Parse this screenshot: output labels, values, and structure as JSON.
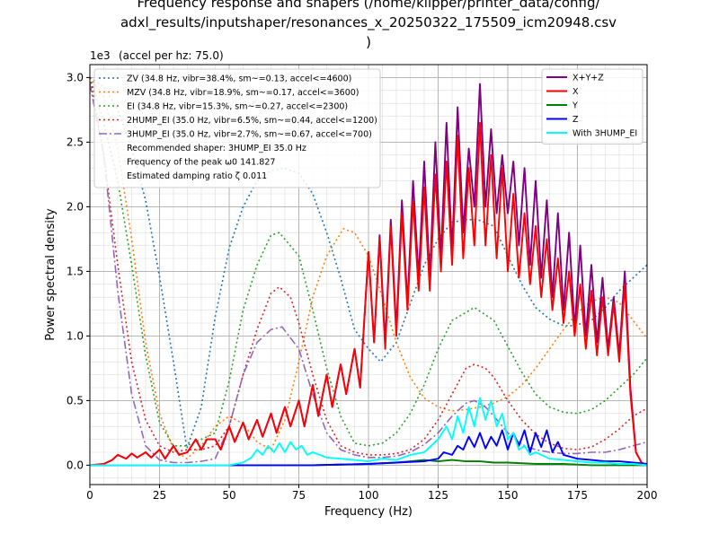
{
  "chart_data": {
    "type": "line",
    "title_lines": [
      "Frequency response and shapers (/home/klipper/printer_data/config/",
      "adxl_results/inputshaper/resonances_x_20250322_175509_icm20948.csv",
      ")"
    ],
    "xlabel": "Frequency (Hz)",
    "ylabel": "Power spectral density",
    "y_multiplier_label": "1e3",
    "top_annotation": "(accel per hz: 75.0)",
    "xlim": [
      0,
      200
    ],
    "ylim": [
      -0.15,
      3.1
    ],
    "x_ticks": [
      0,
      25,
      50,
      75,
      100,
      125,
      150,
      175,
      200
    ],
    "x_tick_labels": [
      "0",
      "25",
      "50",
      "75",
      "100",
      "125",
      "150",
      "175",
      "200"
    ],
    "y_ticks": [
      0,
      0.5,
      1.0,
      1.5,
      2.0,
      2.5,
      3.0
    ],
    "y_tick_labels": [
      "0.0",
      "0.5",
      "1.0",
      "1.5",
      "2.0",
      "2.5",
      "3.0"
    ],
    "grid": true,
    "minor_grid": true,
    "legend_left_position": "upper-left",
    "legend_right_position": "upper-right",
    "shaper_series": [
      {
        "name": "ZV (34.8 Hz, vibr=38.4%, sm~=0.13, accel<=4600)",
        "color": "#1f77b4",
        "style": "dotted",
        "x": [
          0,
          5,
          10,
          15,
          20,
          25,
          30,
          34.8,
          40,
          45,
          50,
          55,
          60,
          65,
          69.6,
          75,
          80,
          85,
          90,
          95,
          100,
          104.4,
          110,
          115,
          120,
          125,
          130,
          135,
          139.2,
          145,
          150,
          155,
          160,
          165,
          170,
          174,
          180,
          185,
          190,
          195,
          200
        ],
        "y": [
          3.0,
          2.93,
          2.75,
          2.45,
          2.05,
          1.46,
          0.8,
          0.13,
          0.45,
          1.15,
          1.68,
          2.0,
          2.2,
          2.28,
          2.3,
          2.26,
          2.1,
          1.8,
          1.45,
          1.05,
          0.9,
          0.8,
          0.95,
          1.25,
          1.55,
          1.75,
          1.88,
          1.9,
          1.9,
          1.85,
          1.62,
          1.4,
          1.22,
          1.13,
          1.08,
          1.08,
          1.12,
          1.22,
          1.35,
          1.45,
          1.55
        ]
      },
      {
        "name": "MZV (34.8 Hz, vibr=18.9%, sm~=0.17, accel<=3600)",
        "color": "#ff7f0e",
        "style": "dotted",
        "x": [
          0,
          5,
          10,
          15,
          20,
          25,
          30,
          34.8,
          40,
          45,
          50,
          55,
          60,
          65,
          70,
          75,
          80,
          85,
          91,
          95,
          100,
          105,
          110,
          115,
          120,
          125,
          130,
          135,
          140,
          145,
          150,
          155,
          160,
          165,
          170,
          175,
          180,
          185,
          190,
          195,
          200
        ],
        "y": [
          3.0,
          2.85,
          2.45,
          1.75,
          0.95,
          0.4,
          0.12,
          0.05,
          0.15,
          0.3,
          0.38,
          0.32,
          0.18,
          0.12,
          0.35,
          0.8,
          1.3,
          1.62,
          1.83,
          1.8,
          1.62,
          1.3,
          0.95,
          0.68,
          0.52,
          0.45,
          0.42,
          0.43,
          0.45,
          0.48,
          0.53,
          0.62,
          0.75,
          0.9,
          1.05,
          1.18,
          1.27,
          1.3,
          1.26,
          1.12,
          0.98
        ]
      },
      {
        "name": "EI (34.8 Hz, vibr=15.3%, sm~=0.27, accel<=2300)",
        "color": "#2ca02c",
        "style": "dotted",
        "x": [
          0,
          5,
          10,
          15,
          20,
          25,
          30,
          34.8,
          40,
          45,
          50,
          55,
          60,
          65,
          68,
          75,
          80,
          85,
          90,
          95,
          100,
          105,
          110,
          115,
          120,
          125,
          130,
          138,
          145,
          150,
          155,
          160,
          165,
          170,
          175,
          180,
          185,
          190,
          195,
          200
        ],
        "y": [
          3.0,
          2.65,
          2.2,
          1.55,
          0.85,
          0.33,
          0.15,
          0.15,
          0.2,
          0.25,
          0.65,
          1.2,
          1.55,
          1.78,
          1.8,
          1.62,
          1.2,
          0.75,
          0.38,
          0.17,
          0.15,
          0.17,
          0.25,
          0.4,
          0.62,
          0.9,
          1.12,
          1.22,
          1.12,
          0.92,
          0.72,
          0.55,
          0.45,
          0.41,
          0.4,
          0.43,
          0.5,
          0.6,
          0.7,
          0.83
        ]
      },
      {
        "name": "2HUMP_EI (35.0 Hz, vibr=6.5%, sm~=0.44, accel<=1200)",
        "color": "#d62728",
        "style": "dotted",
        "x": [
          0,
          5,
          10,
          15,
          20,
          25,
          30,
          35,
          40,
          45,
          50,
          55,
          60,
          65,
          68,
          72,
          75,
          80,
          85,
          90,
          95,
          100,
          105,
          110,
          115,
          120,
          125,
          130,
          135,
          138,
          142,
          145,
          150,
          155,
          160,
          165,
          170,
          175,
          180,
          185,
          190,
          195,
          200
        ],
        "y": [
          3.0,
          2.4,
          1.55,
          0.8,
          0.35,
          0.15,
          0.1,
          0.12,
          0.12,
          0.15,
          0.3,
          0.7,
          1.05,
          1.33,
          1.38,
          1.3,
          1.1,
          0.7,
          0.35,
          0.15,
          0.1,
          0.08,
          0.08,
          0.09,
          0.12,
          0.2,
          0.35,
          0.55,
          0.75,
          0.78,
          0.75,
          0.68,
          0.5,
          0.35,
          0.24,
          0.17,
          0.13,
          0.12,
          0.14,
          0.2,
          0.28,
          0.38,
          0.44
        ]
      },
      {
        "name": "3HUMP_EI (35.0 Hz, vibr=2.7%, sm~=0.67, accel<=700)",
        "color": "#9467bd",
        "style": "dashdot",
        "x": [
          0,
          5,
          10,
          15,
          20,
          25,
          30,
          35,
          40,
          45,
          50,
          55,
          60,
          65,
          69,
          75,
          80,
          85,
          90,
          95,
          100,
          105,
          110,
          115,
          120,
          125,
          130,
          135,
          138,
          142,
          145,
          150,
          155,
          160,
          165,
          170,
          175,
          180,
          185,
          190,
          195,
          200
        ],
        "y": [
          2.95,
          2.4,
          1.35,
          0.55,
          0.15,
          0.04,
          0.02,
          0.02,
          0.03,
          0.05,
          0.3,
          0.7,
          0.95,
          1.05,
          1.07,
          0.9,
          0.55,
          0.25,
          0.12,
          0.08,
          0.06,
          0.06,
          0.07,
          0.1,
          0.16,
          0.25,
          0.38,
          0.48,
          0.5,
          0.45,
          0.38,
          0.25,
          0.16,
          0.12,
          0.1,
          0.09,
          0.09,
          0.1,
          0.1,
          0.12,
          0.15,
          0.18
        ]
      }
    ],
    "shaper_info_lines": [
      "Recommended shaper: 3HUMP_EI 35.0 Hz",
      "Frequency of the peak ω0 141.827",
      "Estimated damping ratio ζ 0.011"
    ],
    "psd_series": [
      {
        "name": "X+Y+Z",
        "color": "#800080",
        "style": "solid",
        "x": [
          0,
          5,
          8,
          10,
          13,
          15,
          17,
          20,
          22,
          25,
          27,
          30,
          32,
          35,
          38,
          40,
          42,
          45,
          47,
          50,
          52,
          55,
          57,
          60,
          62,
          65,
          67,
          70,
          72,
          75,
          77,
          80,
          82,
          85,
          87,
          90,
          92,
          95,
          97,
          100,
          102,
          104,
          106,
          108,
          110,
          112,
          114,
          116,
          118,
          120,
          122,
          124,
          126,
          128,
          130,
          132,
          134,
          136,
          138,
          140,
          142,
          144,
          146,
          148,
          150,
          152,
          154,
          156,
          158,
          160,
          162,
          164,
          166,
          168,
          170,
          172,
          174,
          176,
          178,
          180,
          182,
          184,
          186,
          188,
          190,
          192,
          194,
          196,
          198,
          200
        ],
        "y": [
          0.0,
          0.01,
          0.04,
          0.08,
          0.05,
          0.09,
          0.06,
          0.1,
          0.06,
          0.12,
          0.05,
          0.15,
          0.08,
          0.1,
          0.2,
          0.12,
          0.2,
          0.2,
          0.12,
          0.3,
          0.18,
          0.33,
          0.2,
          0.35,
          0.22,
          0.4,
          0.25,
          0.45,
          0.3,
          0.5,
          0.3,
          0.62,
          0.38,
          0.7,
          0.45,
          0.78,
          0.55,
          0.9,
          0.6,
          1.65,
          0.95,
          1.78,
          0.95,
          1.9,
          1.05,
          2.05,
          1.25,
          2.2,
          1.45,
          2.35,
          1.45,
          2.5,
          1.6,
          2.65,
          1.65,
          2.77,
          1.8,
          2.45,
          2.0,
          2.95,
          2.0,
          2.6,
          1.95,
          2.4,
          1.95,
          2.35,
          1.7,
          2.3,
          1.55,
          2.2,
          1.45,
          2.05,
          1.3,
          1.95,
          1.2,
          1.8,
          1.05,
          1.7,
          1.0,
          1.55,
          0.95,
          1.45,
          0.9,
          1.3,
          0.85,
          1.5,
          0.6,
          0.1,
          0.02,
          0.0
        ]
      },
      {
        "name": "X",
        "color": "#ff0000",
        "style": "solid",
        "x": [
          0,
          5,
          8,
          10,
          13,
          15,
          17,
          20,
          22,
          25,
          27,
          30,
          32,
          35,
          38,
          40,
          42,
          45,
          47,
          50,
          52,
          55,
          57,
          60,
          62,
          65,
          67,
          70,
          72,
          75,
          77,
          80,
          82,
          85,
          87,
          90,
          92,
          95,
          97,
          100,
          102,
          104,
          106,
          108,
          110,
          112,
          114,
          116,
          118,
          120,
          122,
          124,
          126,
          128,
          130,
          132,
          134,
          136,
          138,
          140,
          142,
          144,
          146,
          148,
          150,
          152,
          154,
          156,
          158,
          160,
          162,
          164,
          166,
          168,
          170,
          172,
          174,
          176,
          178,
          180,
          182,
          184,
          186,
          188,
          190,
          192,
          194,
          196,
          198,
          200
        ],
        "y": [
          0.0,
          0.01,
          0.04,
          0.08,
          0.05,
          0.09,
          0.06,
          0.1,
          0.06,
          0.12,
          0.05,
          0.15,
          0.08,
          0.1,
          0.2,
          0.12,
          0.2,
          0.2,
          0.12,
          0.3,
          0.18,
          0.33,
          0.2,
          0.35,
          0.22,
          0.4,
          0.25,
          0.45,
          0.3,
          0.5,
          0.3,
          0.62,
          0.38,
          0.7,
          0.45,
          0.78,
          0.55,
          0.9,
          0.6,
          1.65,
          0.95,
          1.75,
          0.9,
          1.85,
          1.0,
          1.95,
          1.2,
          2.05,
          1.35,
          2.15,
          1.35,
          2.25,
          1.5,
          2.35,
          1.55,
          2.55,
          1.6,
          2.3,
          1.7,
          2.65,
          1.7,
          2.4,
          1.6,
          2.3,
          1.5,
          2.1,
          1.45,
          1.95,
          1.4,
          1.85,
          1.3,
          1.75,
          1.2,
          1.6,
          1.1,
          1.5,
          1.0,
          1.4,
          0.9,
          1.35,
          0.85,
          1.3,
          0.85,
          1.25,
          0.8,
          1.4,
          0.55,
          0.1,
          0.02,
          0.0
        ]
      },
      {
        "name": "Y",
        "color": "#008000",
        "style": "solid",
        "x": [
          0,
          20,
          40,
          60,
          80,
          100,
          110,
          115,
          120,
          125,
          130,
          135,
          140,
          145,
          150,
          160,
          170,
          180,
          190,
          200
        ],
        "y": [
          0.0,
          0.0,
          0.0,
          0.0,
          0.0,
          0.01,
          0.02,
          0.03,
          0.04,
          0.03,
          0.04,
          0.03,
          0.03,
          0.02,
          0.02,
          0.01,
          0.01,
          0.0,
          0.0,
          0.0
        ]
      },
      {
        "name": "Z",
        "color": "#0000ff",
        "style": "solid",
        "x": [
          0,
          20,
          40,
          60,
          80,
          100,
          110,
          120,
          125,
          127,
          130,
          132,
          134,
          136,
          138,
          140,
          142,
          144,
          146,
          148,
          150,
          152,
          154,
          156,
          158,
          160,
          162,
          164,
          166,
          168,
          170,
          175,
          180,
          185,
          190,
          195,
          200
        ],
        "y": [
          0.0,
          0.0,
          0.0,
          0.0,
          0.0,
          0.01,
          0.02,
          0.03,
          0.05,
          0.1,
          0.08,
          0.15,
          0.12,
          0.22,
          0.14,
          0.25,
          0.13,
          0.22,
          0.15,
          0.27,
          0.12,
          0.25,
          0.15,
          0.27,
          0.1,
          0.25,
          0.14,
          0.27,
          0.1,
          0.18,
          0.08,
          0.05,
          0.04,
          0.03,
          0.03,
          0.02,
          0.01
        ]
      },
      {
        "name": "With 3HUMP_EI",
        "color": "#00ffff",
        "style": "solid",
        "x": [
          0,
          10,
          20,
          25,
          30,
          35,
          40,
          45,
          50,
          55,
          58,
          60,
          62,
          64,
          66,
          68,
          70,
          72,
          74,
          76,
          78,
          80,
          85,
          90,
          95,
          100,
          105,
          110,
          115,
          120,
          125,
          128,
          130,
          132,
          134,
          136,
          138,
          140,
          142,
          144,
          146,
          148,
          150,
          152,
          154,
          156,
          158,
          160,
          165,
          170,
          175,
          180,
          185,
          190,
          195,
          200
        ],
        "y": [
          0.0,
          0.0,
          0.0,
          0.0,
          0.0,
          0.0,
          0.0,
          0.0,
          0.0,
          0.02,
          0.06,
          0.12,
          0.08,
          0.15,
          0.1,
          0.17,
          0.1,
          0.18,
          0.12,
          0.15,
          0.08,
          0.1,
          0.06,
          0.05,
          0.04,
          0.03,
          0.05,
          0.04,
          0.08,
          0.1,
          0.2,
          0.3,
          0.2,
          0.38,
          0.25,
          0.45,
          0.3,
          0.52,
          0.35,
          0.5,
          0.3,
          0.4,
          0.2,
          0.25,
          0.12,
          0.15,
          0.08,
          0.1,
          0.05,
          0.04,
          0.03,
          0.02,
          0.02,
          0.01,
          0.01,
          0.0
        ]
      }
    ]
  }
}
